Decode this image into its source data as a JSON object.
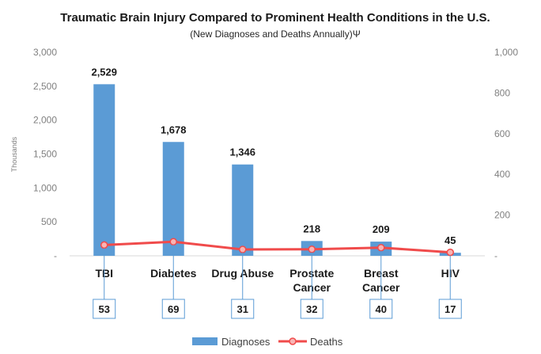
{
  "chart_data": {
    "type": "bar",
    "title": "Traumatic Brain Injury Compared to Prominent Health Conditions in the U.S.",
    "subtitle": "(New Diagnoses and Deaths Annually)Ψ",
    "ylabel": "Thousands",
    "categories": [
      [
        "TBI"
      ],
      [
        "Diabetes"
      ],
      [
        "Drug Abuse"
      ],
      [
        "Prostate",
        "Cancer"
      ],
      [
        "Breast",
        "Cancer"
      ],
      [
        "HIV"
      ]
    ],
    "series": [
      {
        "name": "Diagnoses",
        "type": "bar",
        "axis": "left",
        "values": [
          2529,
          1678,
          1346,
          218,
          209,
          45
        ],
        "labels": [
          "2,529",
          "1,678",
          "1,346",
          "218",
          "209",
          "45"
        ]
      },
      {
        "name": "Deaths",
        "type": "line",
        "axis": "right",
        "values": [
          53,
          69,
          31,
          32,
          40,
          17
        ],
        "labels": [
          "53",
          "69",
          "31",
          "32",
          "40",
          "17"
        ]
      }
    ],
    "ylim": [
      0,
      3000
    ],
    "y2lim": [
      0,
      1000
    ],
    "yticks": [
      "-",
      "500",
      "1,000",
      "1,500",
      "2,000",
      "2,500",
      "3,000"
    ],
    "y2ticks": [
      "-",
      "200",
      "400",
      "600",
      "800",
      "1,000"
    ],
    "grid": false,
    "legend_position": "bottom",
    "colors": {
      "bars": "#5b9bd5",
      "line": "#f04b4b",
      "marker_fill": "#f8b4b4",
      "label_box": "#5b9bd5"
    }
  }
}
